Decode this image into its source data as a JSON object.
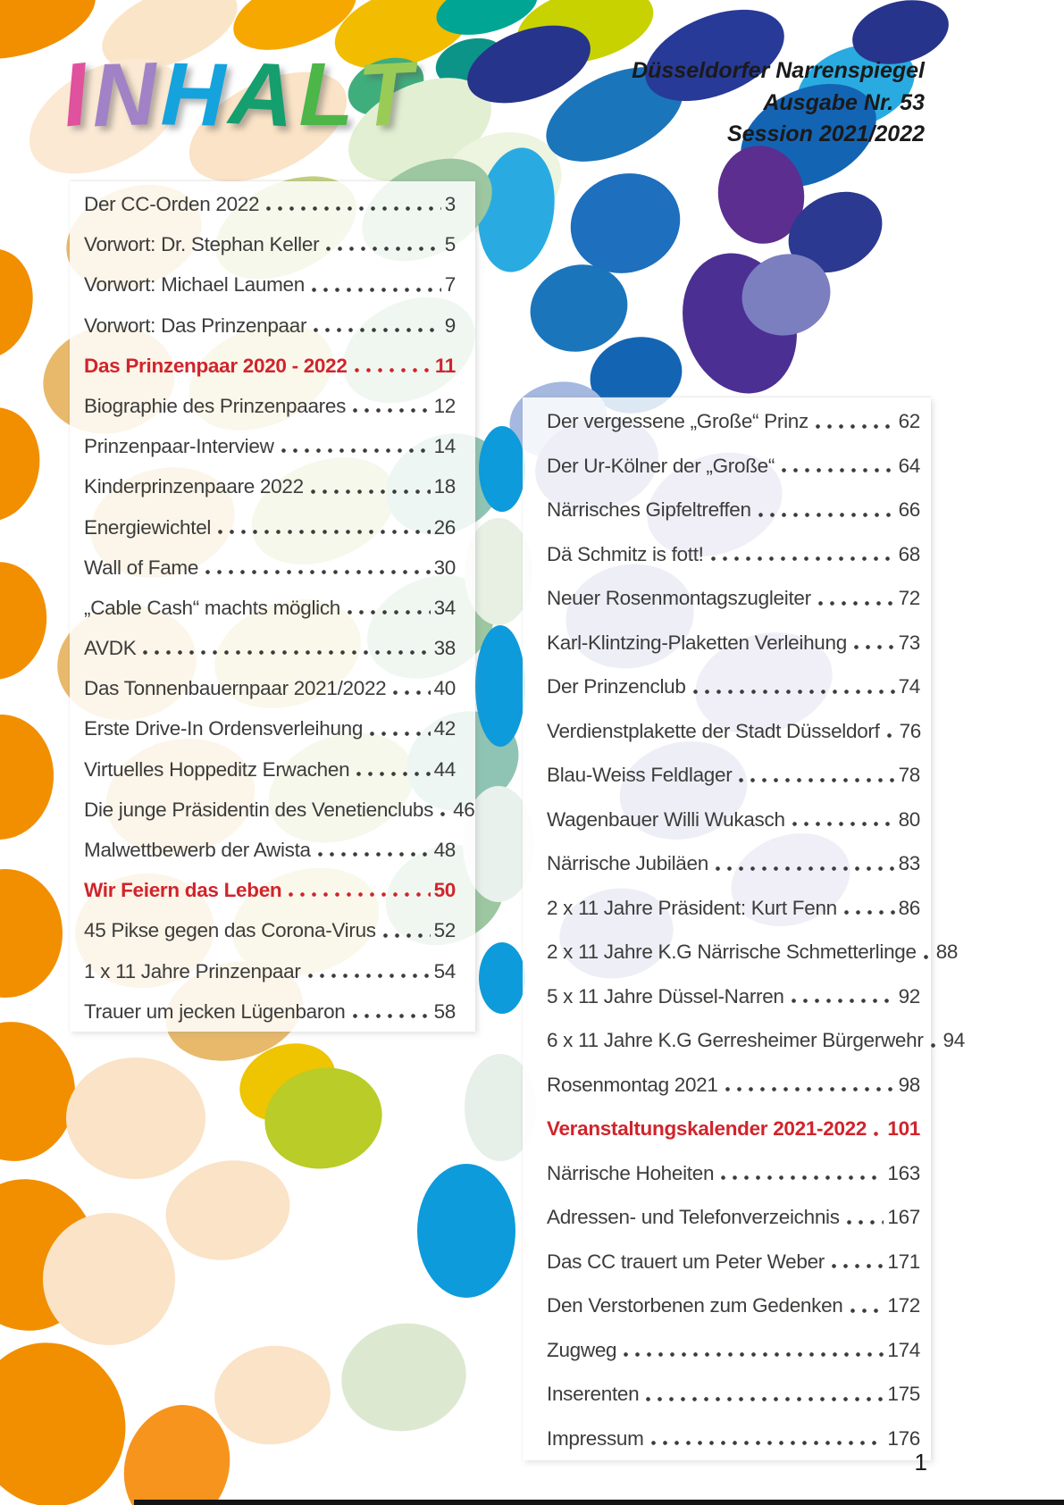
{
  "page": {
    "magazine_line1": "Düsseldorfer Narrenspiegel",
    "magazine_line2": "Ausgabe Nr. 53",
    "magazine_line3": "Session 2021/2022",
    "title_letters": [
      {
        "char": "I",
        "color": "#E0519E"
      },
      {
        "char": "N",
        "color": "#A182C6"
      },
      {
        "char": "H",
        "color": "#14A3DC"
      },
      {
        "char": "A",
        "color": "#159E6E"
      },
      {
        "char": "L",
        "color": "#4CB648"
      },
      {
        "char": "T",
        "color": "#9ACB57"
      }
    ],
    "page_number": "1"
  },
  "toc": {
    "left_column": [
      {
        "label": "Der CC-Orden 2022",
        "page": "3",
        "style": "normal"
      },
      {
        "label": "Vorwort: Dr. Stephan Keller",
        "page": "5",
        "style": "normal"
      },
      {
        "label": "Vorwort: Michael Laumen",
        "page": "7",
        "style": "normal"
      },
      {
        "label": "Vorwort: Das Prinzenpaar",
        "page": "9",
        "style": "normal"
      },
      {
        "label": "Das Prinzenpaar 2020 - 2022",
        "page": "11",
        "style": "section"
      },
      {
        "label": "Biographie des Prinzenpaares",
        "page": "12",
        "style": "normal"
      },
      {
        "label": "Prinzenpaar-Interview",
        "page": "14",
        "style": "normal"
      },
      {
        "label": "Kinderprinzenpaare 2022",
        "page": "18",
        "style": "normal"
      },
      {
        "label": "Energiewichtel",
        "page": "26",
        "style": "normal"
      },
      {
        "label": "Wall of Fame",
        "page": "30",
        "style": "normal"
      },
      {
        "label": "„Cable Cash“ machts möglich",
        "page": "34",
        "style": "normal"
      },
      {
        "label": "AVDK",
        "page": "38",
        "style": "normal"
      },
      {
        "label": "Das Tonnenbauernpaar 2021/2022",
        "page": "40",
        "style": "normal"
      },
      {
        "label": "Erste Drive-In Ordensverleihung",
        "page": "42",
        "style": "normal"
      },
      {
        "label": "Virtuelles Hoppeditz Erwachen",
        "page": "44",
        "style": "normal"
      },
      {
        "label": "Die junge Präsidentin des Venetienclubs",
        "page": "46",
        "style": "normal"
      },
      {
        "label": "Malwettbewerb der Awista",
        "page": "48",
        "style": "normal"
      },
      {
        "label": "Wir Feiern das Leben",
        "page": "50",
        "style": "section"
      },
      {
        "label": "45 Pikse gegen das Corona-Virus",
        "page": "52",
        "style": "normal"
      },
      {
        "label": "1 x 11 Jahre Prinzenpaar",
        "page": "54",
        "style": "normal"
      },
      {
        "label": "Trauer um jecken Lügenbaron",
        "page": "58",
        "style": "normal"
      }
    ],
    "right_column": [
      {
        "label": "Der vergessene „Große“ Prinz",
        "page": "62",
        "style": "normal"
      },
      {
        "label": "Der Ur-Kölner der „Große“",
        "page": "64",
        "style": "normal"
      },
      {
        "label": "Närrisches Gipfeltreffen",
        "page": "66",
        "style": "normal"
      },
      {
        "label": "Dä Schmitz is fott!",
        "page": "68",
        "style": "normal"
      },
      {
        "label": "Neuer Rosenmontagszugleiter",
        "page": "72",
        "style": "normal"
      },
      {
        "label": "Karl-Klintzing-Plaketten Verleihung",
        "page": "73",
        "style": "normal"
      },
      {
        "label": "Der Prinzenclub",
        "page": "74",
        "style": "normal"
      },
      {
        "label": "Verdienstplakette der Stadt Düsseldorf",
        "page": "76",
        "style": "normal"
      },
      {
        "label": "Blau-Weiss Feldlager",
        "page": "78",
        "style": "normal"
      },
      {
        "label": "Wagenbauer Willi Wukasch",
        "page": "80",
        "style": "normal"
      },
      {
        "label": "Närrische Jubiläen",
        "page": "83",
        "style": "normal"
      },
      {
        "label": "2 x 11 Jahre Präsident: Kurt Fenn",
        "page": "86",
        "style": "normal"
      },
      {
        "label": "2 x 11 Jahre K.G Närrische Schmetterlinge",
        "page": "88",
        "style": "normal"
      },
      {
        "label": "5 x 11 Jahre Düssel-Narren",
        "page": "92",
        "style": "normal"
      },
      {
        "label": "6 x 11 Jahre K.G Gerresheimer Bürgerwehr",
        "page": "94",
        "style": "normal"
      },
      {
        "label": "Rosenmontag 2021",
        "page": "98",
        "style": "normal"
      },
      {
        "label": "Veranstaltungskalender 2021-2022",
        "page": "101",
        "style": "section"
      },
      {
        "label": "Närrische Hoheiten",
        "page": "163",
        "style": "normal"
      },
      {
        "label": "Adressen- und Telefonverzeichnis",
        "page": "167",
        "style": "normal"
      },
      {
        "label": "Das CC trauert um Peter Weber",
        "page": "171",
        "style": "normal"
      },
      {
        "label": "Den Verstorbenen zum Gedenken",
        "page": "172",
        "style": "normal"
      },
      {
        "label": "Zugweg",
        "page": "174",
        "style": "normal"
      },
      {
        "label": "Inserenten",
        "page": "175",
        "style": "normal"
      },
      {
        "label": "Impressum",
        "page": "176",
        "style": "normal"
      }
    ]
  },
  "colors": {
    "section_red": "#D1242B",
    "body_text": "#3C3C3B",
    "accent_blue": "#0D9BDB",
    "accent_orange": "#F18F01"
  }
}
